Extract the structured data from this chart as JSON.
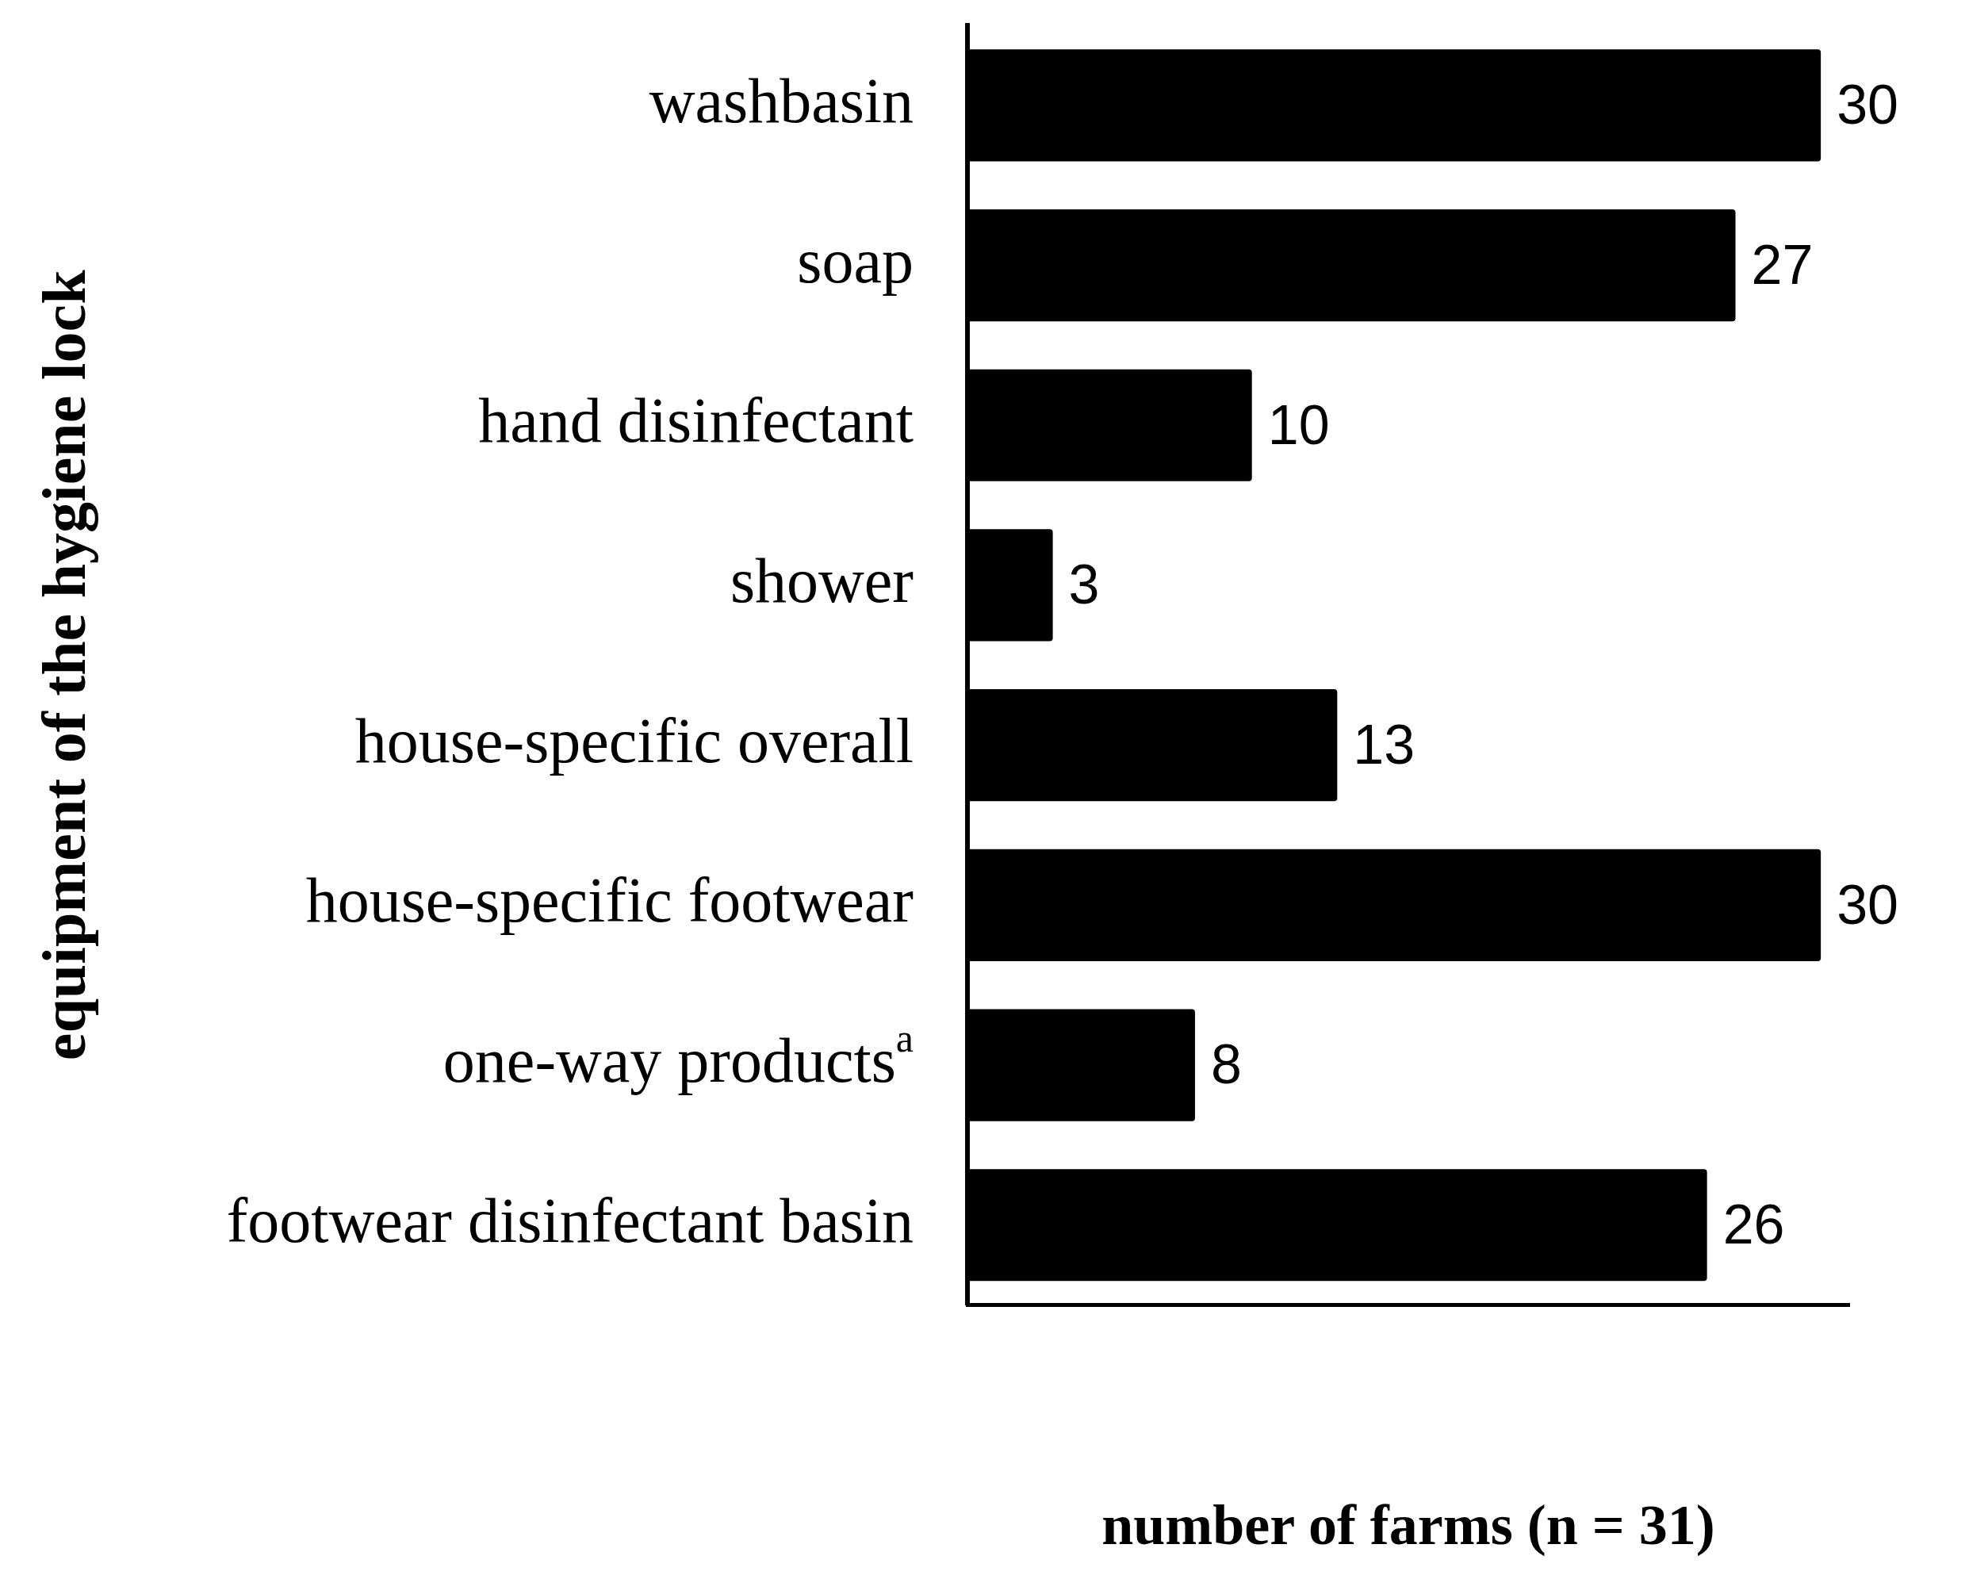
{
  "chart_data": {
    "type": "bar",
    "orientation": "horizontal",
    "xlabel": "number of farms (n = 31)",
    "ylabel": "equipment of the hygiene lock",
    "categories": [
      "washbasin",
      "soap",
      "hand disinfectant",
      "shower",
      "house-specific overall",
      "house-specific footwear",
      "one-way products$^{a}$",
      "footwear disinfectant basin"
    ],
    "values": [
      30,
      27,
      10,
      3,
      13,
      30,
      8,
      26
    ],
    "color": "#000000",
    "xlim": [
      0,
      31
    ],
    "data_labels": true,
    "grid": false,
    "legend": false,
    "tick_labels": "y"
  }
}
